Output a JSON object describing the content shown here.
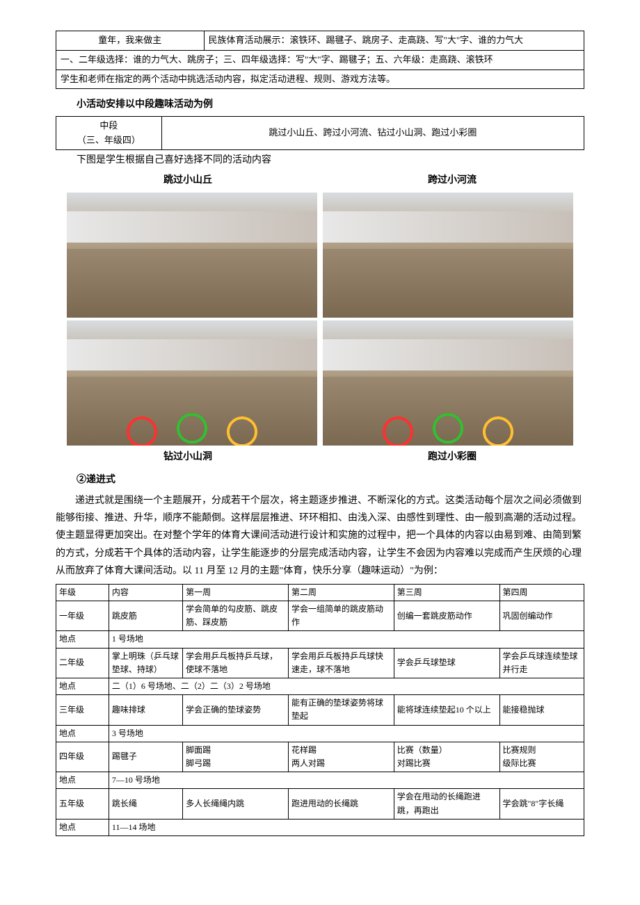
{
  "table1": {
    "r1c1": "童年，我来做主",
    "r1c2": "民族体育活动展示：滚铁环、踢毽子、跳房子、走高跷、写\"大\"字、谁的力气大",
    "r2": "一、二年级选择：谁的力气大、跳房子；三、四年级选择：写\"大\"字、踢毽子；五、六年级：走高跷、滚铁环",
    "r3": "学生和老师在指定的两个活动中挑选活动内容，拟定活动进程、规则、游戏方法等。"
  },
  "section1_label": "小活动安排以中段趣味活动为例",
  "table2": {
    "c1_l1": "中段",
    "c1_l2": "（三、年级四）",
    "c2": "跳过小山丘、跨过小河流、钻过小山洞、跑过小彩圈"
  },
  "note1": "下图是学生根据自己喜好选择不同的活动内容",
  "captions": {
    "top_left": "跳过小山丘",
    "top_right": "跨过小河流",
    "bottom_left": "钻过小山洞",
    "bottom_right": "跑过小彩圈"
  },
  "section2_label": "②递进式",
  "para1": "递进式就是围绕一个主题展开，分成若干个层次，将主题逐步推进、不断深化的方式。这类活动每个层次之间必须做到能够衔接、推进、升华，顺序不能颠倒。这样层层推进、环环相扣、由浅入深、由感性到理性、由一般到高潮的活动过程。使主题显得更加突出。在对整个学年的体育大课间活动进行设计和实施的过程中，把一个具体的内容以由易到难、由简到繁的方式，分成若干个具体的活动内容，让学生能逐步的分层完成活动内容，让学生不会因为内容难以完成而产生厌烦的心理从而放弃了体育大课间活动。以 11 月至 12 月的主题\"体育，快乐分享（趣味运动）\"为例：",
  "schedule": {
    "headers": [
      "年级",
      "内容",
      "第一周",
      "第二周",
      "第三周",
      "第四周"
    ],
    "rows": [
      [
        "一年级",
        "跳皮筋",
        "学会简单的勾皮筋、跳皮筋、踩皮筋",
        "学会一组简单的跳皮筋动作",
        "创编一套跳皮筋动作",
        "巩固创编动作"
      ],
      [
        "地点",
        "1 号场地"
      ],
      [
        "二年级",
        "掌上明珠（乒乓球垫球、持球）",
        "学会用乒乓板持乒乓球，使球不落地",
        "学会用乒乓板持乒乓球快速走，球不落地",
        "学会乒乓球垫球",
        "学会乒乓球连续垫球并行走"
      ],
      [
        "地点",
        "二（1）6 号场地、二（2）二（3）2 号场地"
      ],
      [
        "三年级",
        "趣味排球",
        "学会正确的垫球姿势",
        "能有正确的垫球姿势将球垫起",
        "能将球连续垫起10 个以上",
        "能接稳抛球"
      ],
      [
        "地点",
        "3 号场地"
      ],
      [
        "四年级",
        "踢毽子",
        "脚面踢\n脚弓踢",
        "花样踢\n两人对踢",
        "比赛（数量）\n对踢比赛",
        "比赛规则\n级际比赛"
      ],
      [
        "地点",
        "7—10 号场地"
      ],
      [
        "五年级",
        "跳长绳",
        "多人长绳绳内跳",
        "跑进甩动的长绳跳",
        "学会在甩动的长绳跑进跳，再跑出",
        "学会跳\"8\"字长绳"
      ],
      [
        "地点",
        "11—14 场地"
      ]
    ]
  }
}
